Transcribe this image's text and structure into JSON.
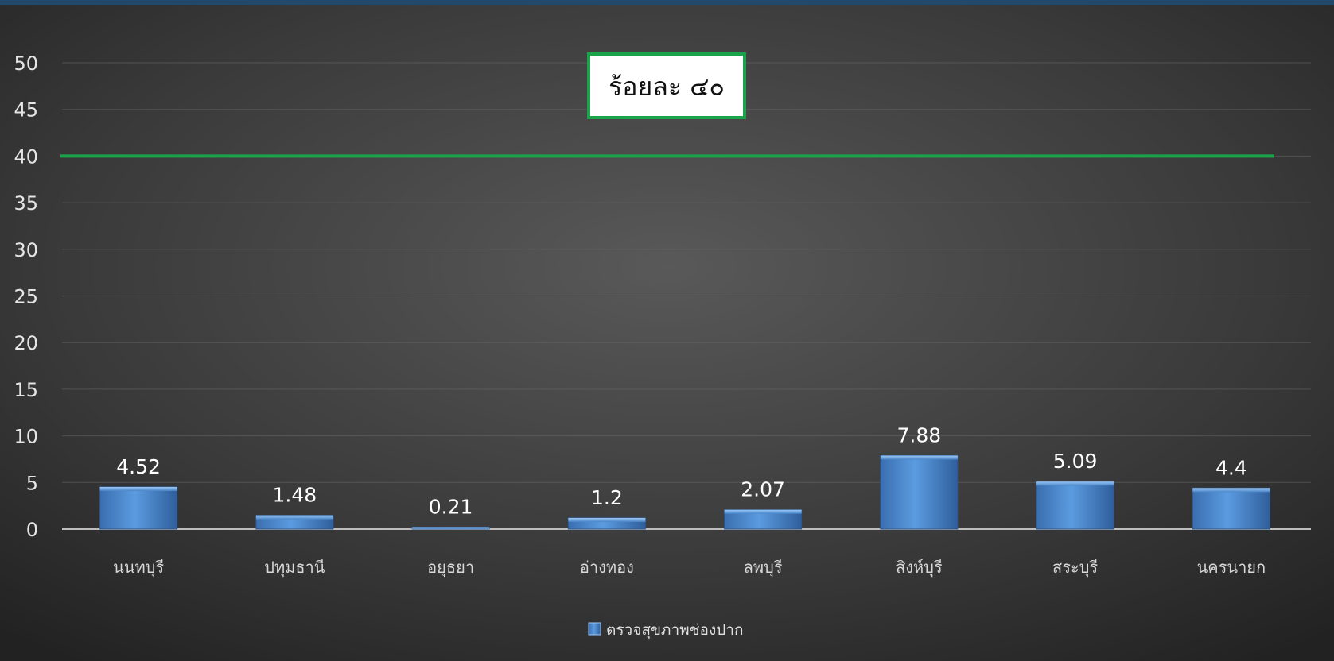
{
  "chart_data": {
    "type": "bar",
    "categories": [
      "นนทบุรี",
      "ปทุมธานี",
      "อยุธยา",
      "อ่างทอง",
      "ลพบุรี",
      "สิงห์บุรี",
      "สระบุรี",
      "นครนายก"
    ],
    "series": [
      {
        "name": "ตรวจสุขภาพช่องปาก",
        "values": [
          4.52,
          1.48,
          0.21,
          1.2,
          2.07,
          7.88,
          5.09,
          4.4
        ],
        "color": "#4a86c8"
      }
    ],
    "ylim": [
      0,
      50
    ],
    "yticks": [
      0,
      5,
      10,
      15,
      20,
      25,
      30,
      35,
      40,
      45,
      50
    ],
    "grid": true,
    "legend_position": "bottom",
    "target": {
      "value": 40,
      "label": "ร้อยละ ๔๐",
      "color": "#1aa34a"
    },
    "title": "",
    "xlabel": "",
    "ylabel": ""
  }
}
